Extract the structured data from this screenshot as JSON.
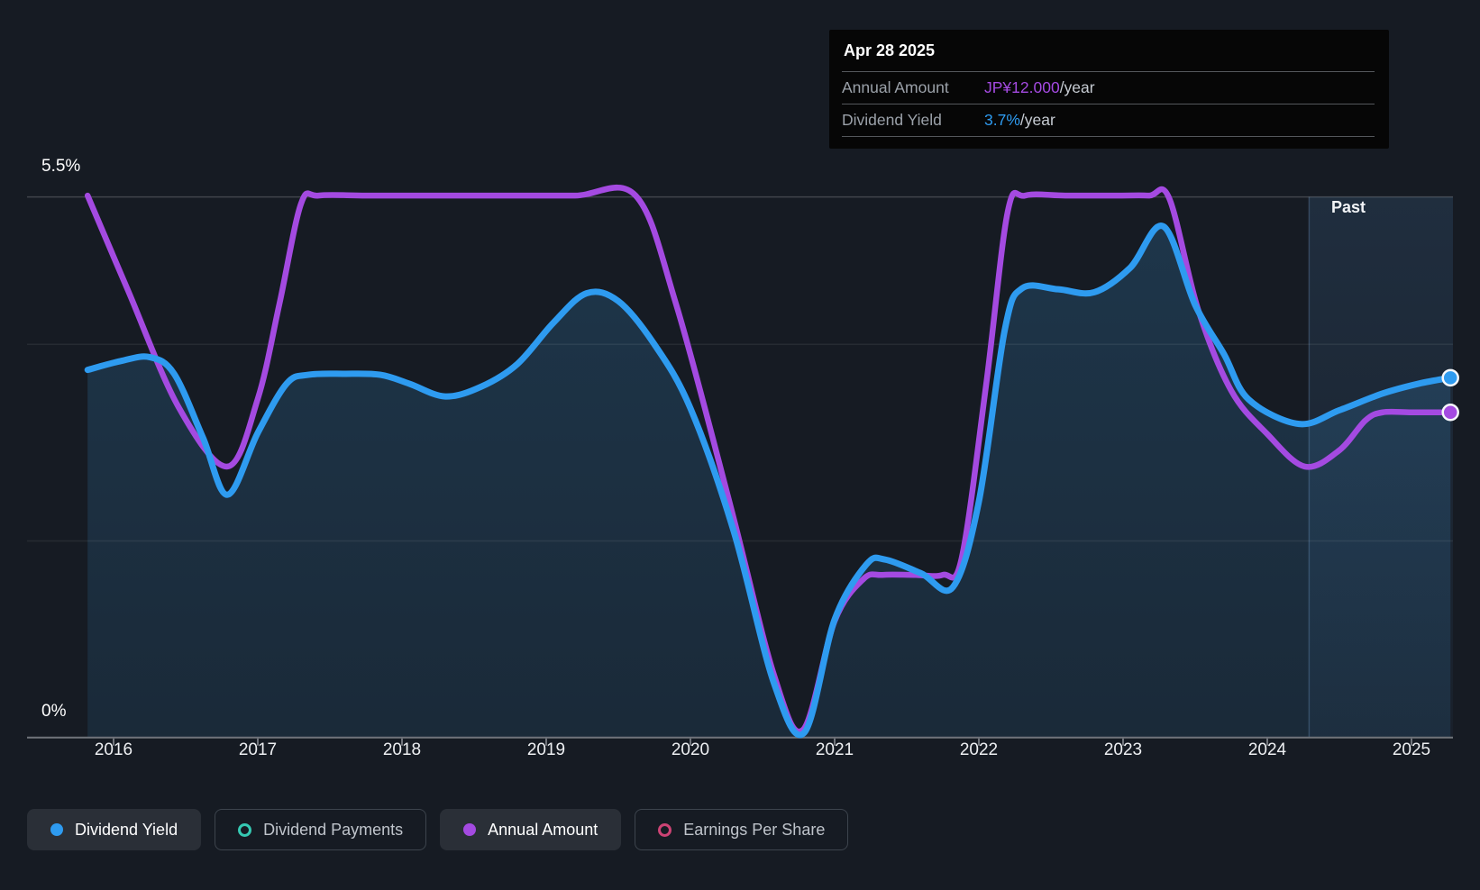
{
  "labels": {
    "y_top": "5.5%",
    "y_bottom": "0%",
    "past": "Past"
  },
  "tooltip": {
    "date": "Apr 28 2025",
    "rows": [
      {
        "label": "Annual Amount",
        "value": "JP¥12.000",
        "suffix": "/year",
        "color": "#A44AE1"
      },
      {
        "label": "Dividend Yield",
        "value": "3.7%",
        "suffix": "/year",
        "color": "#2E9BF0"
      }
    ]
  },
  "legend": {
    "items": [
      {
        "label": "Dividend Yield",
        "marker": "dot",
        "style": "filled",
        "color": "#2E9BF0"
      },
      {
        "label": "Dividend Payments",
        "marker": "ring",
        "style": "outlined",
        "color": "#35C8B2"
      },
      {
        "label": "Annual Amount",
        "marker": "dot",
        "style": "filled",
        "color": "#A44AE1"
      },
      {
        "label": "Earnings Per Share",
        "marker": "ring",
        "style": "outlined",
        "color": "#CC4374"
      }
    ]
  },
  "colors": {
    "background": "#161B23",
    "yield_line": "#2E9BF0",
    "amount_line": "#A44AE1",
    "area_fill_rgb": "60,160,230",
    "past_fill_rgb": "90,160,230",
    "axis": "#70747B",
    "gridline_strong": "rgba(255,255,255,0.18)",
    "gridline_faint": "rgba(255,255,255,0.07)",
    "marker_stroke": "#F5F7FA"
  },
  "chart_data": {
    "type": "line",
    "title": "Dividend history chart with yield and annual amount",
    "x_axis": {
      "ticks": [
        2016,
        2017,
        2018,
        2019,
        2020,
        2021,
        2022,
        2023,
        2024,
        2025
      ],
      "range": [
        2015.72,
        2025.32
      ]
    },
    "y_axis": {
      "unit": "%",
      "min": 0,
      "max": 5.5,
      "top_label": "5.5%",
      "bottom_label": "0%",
      "gridlines_pct": [
        2,
        4,
        5.5
      ]
    },
    "amount_axis": {
      "unit": "JP¥/year",
      "min": 0,
      "max": 20
    },
    "past_divider_year": 2024.29,
    "latest": {
      "date": "Apr 28 2025",
      "annual_amount": "JP¥12.000/year",
      "dividend_yield": "3.7%/year"
    },
    "series": [
      {
        "name": "Dividend Yield",
        "axis": "percent",
        "unit": "%",
        "color": "#2E9BF0",
        "end_marker": true,
        "points": [
          [
            2015.82,
            3.74
          ],
          [
            2016.05,
            3.83
          ],
          [
            2016.25,
            3.87
          ],
          [
            2016.42,
            3.7
          ],
          [
            2016.62,
            3.05
          ],
          [
            2016.79,
            2.47
          ],
          [
            2017.0,
            3.1
          ],
          [
            2017.2,
            3.6
          ],
          [
            2017.35,
            3.69
          ],
          [
            2017.6,
            3.7
          ],
          [
            2017.85,
            3.69
          ],
          [
            2018.05,
            3.6
          ],
          [
            2018.3,
            3.47
          ],
          [
            2018.55,
            3.57
          ],
          [
            2018.8,
            3.8
          ],
          [
            2019.05,
            4.22
          ],
          [
            2019.28,
            4.52
          ],
          [
            2019.5,
            4.44
          ],
          [
            2019.75,
            4.0
          ],
          [
            2020.0,
            3.35
          ],
          [
            2020.3,
            2.1
          ],
          [
            2020.58,
            0.55
          ],
          [
            2020.79,
            0.05
          ],
          [
            2021.0,
            1.2
          ],
          [
            2021.22,
            1.76
          ],
          [
            2021.35,
            1.81
          ],
          [
            2021.6,
            1.67
          ],
          [
            2021.82,
            1.53
          ],
          [
            2022.0,
            2.4
          ],
          [
            2022.18,
            4.15
          ],
          [
            2022.3,
            4.57
          ],
          [
            2022.55,
            4.56
          ],
          [
            2022.8,
            4.53
          ],
          [
            2023.05,
            4.78
          ],
          [
            2023.28,
            5.2
          ],
          [
            2023.5,
            4.4
          ],
          [
            2023.7,
            3.9
          ],
          [
            2023.87,
            3.44
          ],
          [
            2024.22,
            3.19
          ],
          [
            2024.5,
            3.33
          ],
          [
            2024.8,
            3.5
          ],
          [
            2025.05,
            3.6
          ],
          [
            2025.27,
            3.66
          ]
        ]
      },
      {
        "name": "Annual Amount",
        "axis": "amount",
        "unit": "JP¥",
        "color": "#A44AE1",
        "end_marker": true,
        "points": [
          [
            2015.82,
            20.0
          ],
          [
            2016.1,
            16.5
          ],
          [
            2016.45,
            12.2
          ],
          [
            2016.79,
            10.0
          ],
          [
            2017.0,
            12.5
          ],
          [
            2017.15,
            16.0
          ],
          [
            2017.3,
            19.7
          ],
          [
            2017.42,
            20.0
          ],
          [
            2017.75,
            20.0
          ],
          [
            2018.2,
            20.0
          ],
          [
            2018.7,
            20.0
          ],
          [
            2019.2,
            20.0
          ],
          [
            2019.62,
            20.0
          ],
          [
            2019.9,
            16.0
          ],
          [
            2020.28,
            8.5
          ],
          [
            2020.58,
            2.3
          ],
          [
            2020.78,
            0.28
          ],
          [
            2021.0,
            4.3
          ],
          [
            2021.2,
            5.85
          ],
          [
            2021.33,
            6.0
          ],
          [
            2021.55,
            6.0
          ],
          [
            2021.75,
            6.0
          ],
          [
            2021.88,
            6.6
          ],
          [
            2022.05,
            13.0
          ],
          [
            2022.2,
            19.4
          ],
          [
            2022.32,
            20.0
          ],
          [
            2022.6,
            20.0
          ],
          [
            2022.95,
            20.0
          ],
          [
            2023.18,
            20.0
          ],
          [
            2023.32,
            19.9
          ],
          [
            2023.52,
            15.8
          ],
          [
            2023.75,
            12.8
          ],
          [
            2024.0,
            11.2
          ],
          [
            2024.26,
            10.0
          ],
          [
            2024.5,
            10.6
          ],
          [
            2024.68,
            11.7
          ],
          [
            2024.8,
            12.0
          ],
          [
            2025.0,
            12.0
          ],
          [
            2025.27,
            12.0
          ]
        ]
      }
    ]
  }
}
